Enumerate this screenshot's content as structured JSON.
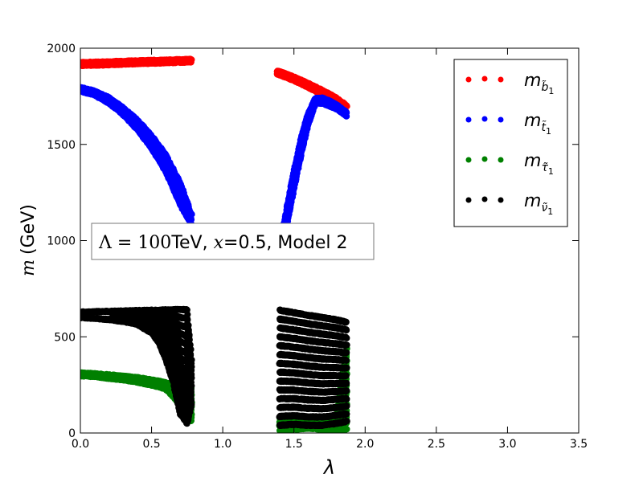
{
  "chart_data": {
    "type": "scatter",
    "title": "",
    "xlabel": "λ",
    "ylabel_var": "m",
    "ylabel_unit": "(GeV)",
    "xlim": [
      0,
      3.5
    ],
    "ylim": [
      0,
      2000
    ],
    "xticks": [
      "0.0",
      "0.5",
      "1.0",
      "1.5",
      "2.0",
      "2.5",
      "3.0",
      "3.5"
    ],
    "xtick_values": [
      0,
      0.5,
      1.0,
      1.5,
      2.0,
      2.5,
      3.0,
      3.5
    ],
    "yticks": [
      "0",
      "500",
      "1000",
      "1500",
      "2000"
    ],
    "ytick_values": [
      0,
      500,
      1000,
      1500,
      2000
    ],
    "grid": false,
    "legend_position": "top-right",
    "annotation": {
      "parts": [
        "Λ",
        " = ",
        "100",
        "TeV, ",
        "x",
        "=0.5, Model 2"
      ]
    },
    "series": [
      {
        "name": "m_b̃1",
        "legend_main": "m",
        "legend_sub": "b̃",
        "legend_subsub": "1",
        "color": "#ff0000",
        "bands": [
          {
            "x": [
              0.0,
              0.1,
              0.2,
              0.3,
              0.4,
              0.5,
              0.6,
              0.7,
              0.78
            ],
            "lo": [
              1910,
              1912,
              1914,
              1917,
              1920,
              1922,
              1925,
              1927,
              1929
            ],
            "hi": [
              1925,
              1927,
              1929,
              1932,
              1934,
              1936,
              1938,
              1940,
              1942
            ]
          },
          {
            "x": [
              1.38,
              1.45,
              1.5,
              1.55,
              1.6,
              1.65,
              1.7,
              1.75,
              1.8,
              1.87
            ],
            "lo": [
              1867,
              1848,
              1832,
              1815,
              1797,
              1778,
              1758,
              1737,
              1715,
              1668
            ],
            "hi": [
              1882,
              1864,
              1849,
              1833,
              1816,
              1798,
              1780,
              1760,
              1740,
              1700
            ]
          }
        ]
      },
      {
        "name": "m_t̃1",
        "legend_main": "m",
        "legend_sub": "t̃",
        "legend_subsub": "1",
        "color": "#0000ff",
        "bands": [
          {
            "x": [
              0.0,
              0.1,
              0.2,
              0.3,
              0.4,
              0.5,
              0.6,
              0.7,
              0.78
            ],
            "lo": [
              1778,
              1757,
              1715,
              1655,
              1578,
              1480,
              1360,
              1190,
              1085
            ],
            "hi": [
              1795,
              1777,
              1742,
              1690,
              1625,
              1545,
              1445,
              1300,
              1135
            ]
          },
          {
            "x": [
              1.41,
              1.45,
              1.5,
              1.55,
              1.6,
              1.65,
              1.7,
              1.75,
              1.8,
              1.87
            ],
            "lo": [
              950,
              1085,
              1270,
              1450,
              1605,
              1715,
              1715,
              1700,
              1685,
              1648
            ],
            "hi": [
              1010,
              1165,
              1360,
              1530,
              1660,
              1738,
              1740,
              1725,
              1705,
              1665
            ]
          }
        ]
      },
      {
        "name": "m_τ̃1",
        "legend_main": "m",
        "legend_sub": "τ̃",
        "legend_subsub": "1",
        "color": "#008000",
        "bands": [
          {
            "x": [
              0.0,
              0.1,
              0.2,
              0.3,
              0.4,
              0.5,
              0.6,
              0.7,
              0.78
            ],
            "lo": [
              298,
              293,
              285,
              276,
              264,
              250,
              230,
              150,
              60
            ],
            "hi": [
              312,
              308,
              302,
              295,
              287,
              276,
              262,
              245,
              235
            ]
          },
          {
            "x": [
              1.4,
              1.5,
              1.6,
              1.7,
              1.8,
              1.87
            ],
            "lo": [
              15,
              20,
              25,
              20,
              15,
              20
            ],
            "hi": [
              80,
              60,
              50,
              50,
              90,
              440
            ]
          }
        ]
      },
      {
        "name": "m_ν̃1",
        "legend_main": "m",
        "legend_sub": "ν̃",
        "legend_subsub": "1",
        "color": "#000000",
        "bands": [
          {
            "x": [
              0.0,
              0.1,
              0.2,
              0.3,
              0.4,
              0.5,
              0.55,
              0.6,
              0.65,
              0.7,
              0.75,
              0.78
            ],
            "lo": [
              600,
              596,
              590,
              580,
              565,
              520,
              470,
              380,
              270,
              100,
              50,
              150
            ],
            "hi": [
              628,
              630,
              632,
              634,
              636,
              638,
              639,
              640,
              641,
              642,
              640,
              380
            ]
          },
          {
            "x": [
              1.4,
              1.5,
              1.6,
              1.7,
              1.8,
              1.87
            ],
            "lo": [
              40,
              45,
              40,
              40,
              50,
              60
            ],
            "hi": [
              638,
              625,
              612,
              600,
              588,
              575
            ]
          }
        ]
      }
    ]
  }
}
